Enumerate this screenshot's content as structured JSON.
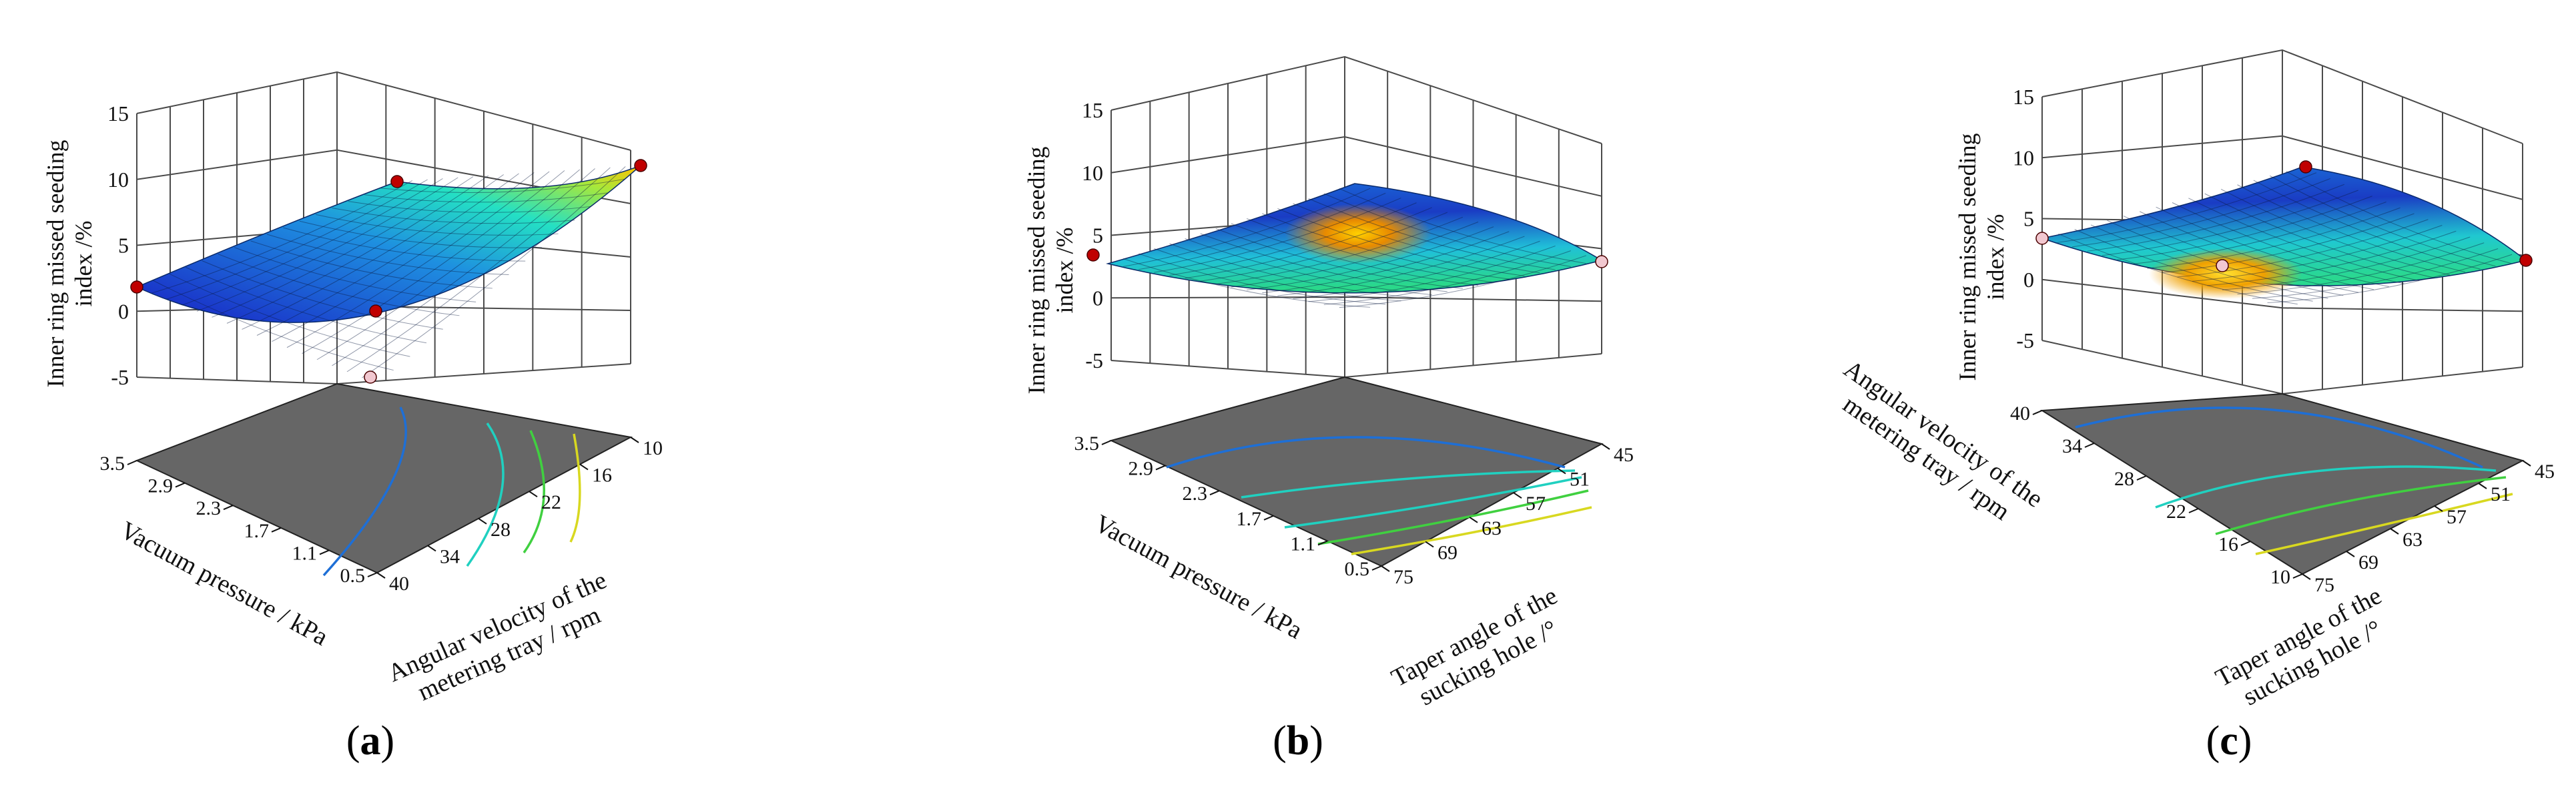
{
  "figure": {
    "panels": [
      {
        "label_open": "(",
        "label_letter": "a",
        "label_close": ")"
      },
      {
        "label_open": "(",
        "label_letter": "b",
        "label_close": ")"
      },
      {
        "label_open": "(",
        "label_letter": "c",
        "label_close": ")"
      }
    ]
  },
  "colors": {
    "background": "#ffffff",
    "floor": "#666666",
    "grid": "#4a4a4a",
    "surface_low": "#1a30c8",
    "surface_mid": "#20e0d0",
    "surface_high": "#ffd000",
    "design_point": "#c00000",
    "design_point_below": "#f2c8d0"
  },
  "chart_data": [
    {
      "type": "surface3d",
      "panel": "a",
      "zlabel": "Inner ring missed seeding index /%",
      "zticks": [
        "15",
        "10",
        "5",
        "0",
        "-5"
      ],
      "zlim": [
        -5,
        15
      ],
      "xlabel": "Vacuum pressure / kPa",
      "xticks": [
        "3.5",
        "2.9",
        "2.3",
        "1.7",
        "1.1",
        "0.5"
      ],
      "xlim": [
        0.5,
        3.5
      ],
      "ylabel": "Angular velocity of  the metering tray / rpm",
      "yticks": [
        "40",
        "34",
        "28",
        "22",
        "16",
        "10"
      ],
      "ylim": [
        10,
        40
      ],
      "surface_corners_z": {
        "x0y0": 13.5,
        "x1y0": 9.5,
        "x0y1": 1.5,
        "x1y1": 3.5
      },
      "surface_min_z": -2.5,
      "design_points_z": [
        13.5,
        9.5,
        1.5,
        -2.5,
        1.0
      ],
      "contour_levels": [
        2,
        4,
        6,
        8
      ]
    },
    {
      "type": "surface3d",
      "panel": "b",
      "zlabel": "Inner ring missed seeding index /%",
      "zticks": [
        "15",
        "10",
        "5",
        "0",
        "-5"
      ],
      "zlim": [
        -5,
        15
      ],
      "xlabel": "Vacuum pressure / kPa",
      "xticks": [
        "3.5",
        "2.9",
        "2.3",
        "1.7",
        "1.1",
        "0.5"
      ],
      "xlim": [
        0.5,
        3.5
      ],
      "ylabel": "Taper angle of the sucking hole /°",
      "yticks": [
        "75",
        "69",
        "63",
        "57",
        "51",
        "45"
      ],
      "ylim": [
        45,
        75
      ],
      "surface_corners_z": {
        "x0y0": 3.0,
        "x1y0": 8.0,
        "x0y1": 3.5,
        "x1y1": 3.0
      },
      "surface_min_z": 0.5,
      "design_points_z": [
        3.5,
        3.0
      ],
      "contour_levels": [
        2,
        4,
        6,
        8
      ]
    },
    {
      "type": "surface3d",
      "panel": "c",
      "zlabel": "Inner ring missed seeding index /%",
      "zticks": [
        "15",
        "10",
        "5",
        "0",
        "-5"
      ],
      "zlim": [
        -5,
        15
      ],
      "xlabel": "Angular velocity of  the metering tray / rpm",
      "xticks": [
        "40",
        "34",
        "28",
        "22",
        "16",
        "10"
      ],
      "xlim": [
        10,
        40
      ],
      "ylabel": "Taper angle of the sucking hole /°",
      "yticks": [
        "75",
        "69",
        "63",
        "57",
        "51",
        "45"
      ],
      "ylim": [
        45,
        75
      ],
      "surface_corners_z": {
        "x0y0": 3.0,
        "x1y0": 8.5,
        "x0y1": 3.0,
        "x1y1": 3.0
      },
      "surface_min_z": 1.0,
      "design_points_z": [
        8.5,
        3.0,
        3.0,
        2.5
      ],
      "contour_levels": [
        2,
        4,
        6
      ]
    }
  ]
}
